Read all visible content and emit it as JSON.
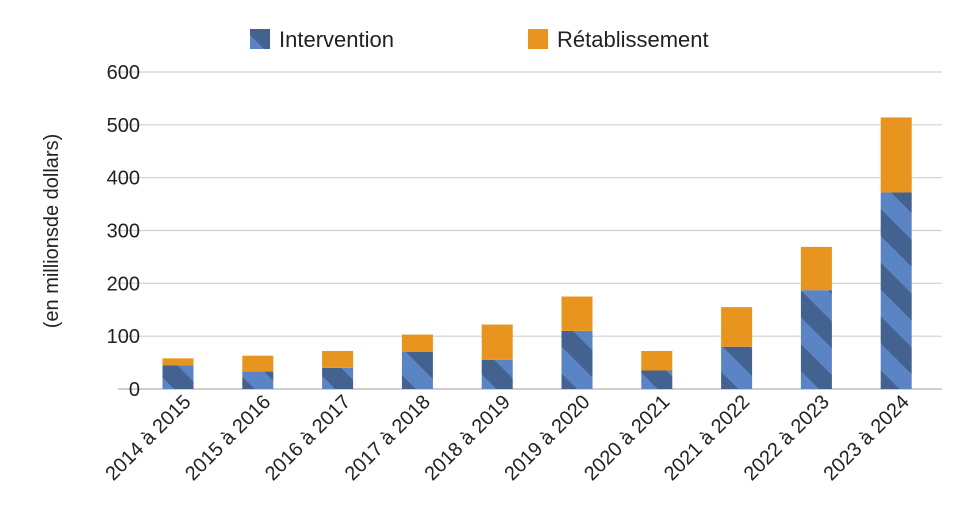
{
  "chart_data": {
    "type": "bar",
    "stacked": true,
    "categories": [
      "2014 à 2015",
      "2015 à 2016",
      "2016 à 2017",
      "2017 à 2018",
      "2018 à 2019",
      "2019 à 2020",
      "2020 à 2021",
      "2021 à 2022",
      "2022 à 2023",
      "2023 à 2024"
    ],
    "series": [
      {
        "name": "Intervention",
        "values": [
          45,
          33,
          40,
          70,
          55,
          110,
          35,
          80,
          187,
          372
        ]
      },
      {
        "name": "Rétablissement",
        "values": [
          13,
          30,
          32,
          33,
          67,
          65,
          37,
          75,
          82,
          142
        ]
      }
    ],
    "ylabel": "(en millionsde dollars)",
    "ylim": [
      0,
      600
    ],
    "yticks": [
      "0",
      "100",
      "200",
      "300",
      "400",
      "500",
      "600"
    ],
    "grid": true,
    "legend_position": "top",
    "colors": {
      "Intervention": "#5b84c4",
      "Intervention_hatch": "#44628f",
      "Rétablissement": "#e8951f"
    }
  }
}
